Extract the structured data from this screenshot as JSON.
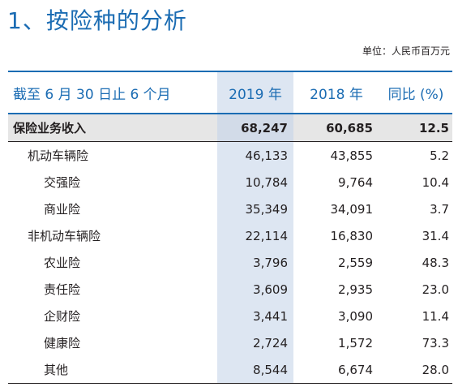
{
  "title": "1、按险种的分析",
  "unit": "单位：人民币百万元",
  "header": {
    "label": "截至 6 月 30 日止 6 个月",
    "col_2019": "2019 年",
    "col_2018": "2018 年",
    "col_yoy": "同比 (%)"
  },
  "rows": [
    {
      "label": "保险业务收入",
      "v2019": "68,247",
      "v2018": "60,685",
      "yoy": "12.5"
    },
    {
      "label": "机动车辆险",
      "v2019": "46,133",
      "v2018": "43,855",
      "yoy": "5.2"
    },
    {
      "label": "交强险",
      "v2019": "10,784",
      "v2018": "9,764",
      "yoy": "10.4"
    },
    {
      "label": "商业险",
      "v2019": "35,349",
      "v2018": "34,091",
      "yoy": "3.7"
    },
    {
      "label": "非机动车辆险",
      "v2019": "22,114",
      "v2018": "16,830",
      "yoy": "31.4"
    },
    {
      "label": "农业险",
      "v2019": "3,796",
      "v2018": "2,559",
      "yoy": "48.3"
    },
    {
      "label": "责任险",
      "v2019": "3,609",
      "v2018": "2,935",
      "yoy": "23.0"
    },
    {
      "label": "企财险",
      "v2019": "3,441",
      "v2018": "3,090",
      "yoy": "11.4"
    },
    {
      "label": "健康险",
      "v2019": "2,724",
      "v2018": "1,572",
      "yoy": "73.3"
    },
    {
      "label": "其他",
      "v2019": "8,544",
      "v2018": "6,674",
      "yoy": "28.0"
    }
  ]
}
